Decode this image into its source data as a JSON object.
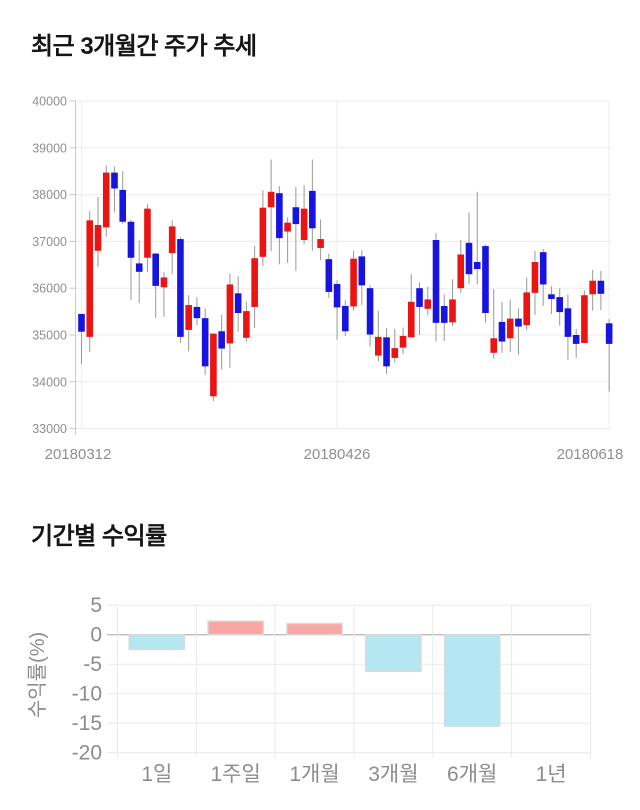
{
  "page": {
    "background": "#ffffff"
  },
  "sections": {
    "price_trend_title": "최근 3개월간 주가 추세",
    "period_return_title": "기간별 수익률"
  },
  "chart_data": [
    {
      "type": "candlestick",
      "title": "최근 3개월간 주가 추세",
      "x_ticks": [
        "20180312",
        "20180426",
        "20180618"
      ],
      "x_tick_data_indices": [
        0,
        31,
        64
      ],
      "y_ticks": [
        40000,
        39000,
        38000,
        37000,
        36000,
        35000,
        34000,
        33000
      ],
      "ylim": [
        33000,
        40000
      ],
      "grid": true,
      "up_color": "#ea1410",
      "down_color": "#1714e0",
      "wick_color": "#999999",
      "ohlc_note": "each row is [open, high, low, close]; close>=open renders red (up), else blue (down)",
      "ohlc": [
        [
          35450,
          35450,
          34380,
          35070
        ],
        [
          34960,
          37650,
          34640,
          37450
        ],
        [
          36800,
          37950,
          36450,
          37350
        ],
        [
          37300,
          38620,
          37100,
          38470
        ],
        [
          38470,
          38600,
          37620,
          38130
        ],
        [
          38100,
          38500,
          37380,
          37420
        ],
        [
          37420,
          37460,
          35750,
          36650
        ],
        [
          36530,
          37020,
          35680,
          36350
        ],
        [
          36650,
          37800,
          36340,
          37700
        ],
        [
          36740,
          36750,
          35360,
          36050
        ],
        [
          36020,
          36350,
          35390,
          36230
        ],
        [
          36750,
          37450,
          36300,
          37320
        ],
        [
          37050,
          37100,
          34830,
          34960
        ],
        [
          35110,
          35850,
          34650,
          35640
        ],
        [
          35600,
          35810,
          35210,
          35360
        ],
        [
          35360,
          35570,
          34150,
          34330
        ],
        [
          33690,
          35030,
          33590,
          35030
        ],
        [
          35080,
          35430,
          34260,
          34710
        ],
        [
          34820,
          36310,
          34300,
          36080
        ],
        [
          35890,
          36250,
          35070,
          35470
        ],
        [
          34940,
          35710,
          34860,
          35510
        ],
        [
          35600,
          36900,
          35150,
          36640
        ],
        [
          36670,
          38090,
          36470,
          37720
        ],
        [
          37730,
          38750,
          36790,
          38060
        ],
        [
          38030,
          38180,
          36510,
          37070
        ],
        [
          37210,
          37510,
          36540,
          37400
        ],
        [
          37730,
          38160,
          36370,
          37370
        ],
        [
          37030,
          38200,
          36940,
          37700
        ],
        [
          38080,
          38750,
          36800,
          37280
        ],
        [
          36860,
          37470,
          36600,
          37050
        ],
        [
          36620,
          36740,
          35790,
          35920
        ],
        [
          36090,
          36170,
          34900,
          35590
        ],
        [
          35620,
          35740,
          34980,
          35080
        ],
        [
          35610,
          36800,
          35520,
          36630
        ],
        [
          36680,
          36810,
          35640,
          36060
        ],
        [
          36000,
          36070,
          34750,
          35010
        ],
        [
          34560,
          35520,
          34440,
          34960
        ],
        [
          34950,
          35150,
          34160,
          34330
        ],
        [
          34510,
          35130,
          34410,
          34720
        ],
        [
          34730,
          35160,
          34600,
          34980
        ],
        [
          34950,
          36300,
          34950,
          35710
        ],
        [
          36000,
          36130,
          35000,
          35600
        ],
        [
          35560,
          36030,
          35420,
          35760
        ],
        [
          37030,
          37180,
          34860,
          35260
        ],
        [
          35620,
          35870,
          34870,
          35260
        ],
        [
          35270,
          36190,
          35190,
          35760
        ],
        [
          36000,
          37030,
          35900,
          36720
        ],
        [
          36970,
          37620,
          36090,
          36300
        ],
        [
          36560,
          38060,
          36080,
          36410
        ],
        [
          36900,
          36930,
          35260,
          35470
        ],
        [
          34620,
          35980,
          34500,
          34930
        ],
        [
          35280,
          35700,
          34620,
          34860
        ],
        [
          34930,
          35760,
          34640,
          35350
        ],
        [
          35350,
          35570,
          34580,
          35180
        ],
        [
          35210,
          36230,
          35100,
          35910
        ],
        [
          35900,
          36800,
          35430,
          36560
        ],
        [
          36770,
          36840,
          35620,
          36080
        ],
        [
          35870,
          36040,
          35450,
          35770
        ],
        [
          35810,
          36000,
          35200,
          35490
        ],
        [
          35570,
          35870,
          34470,
          34960
        ],
        [
          35000,
          35130,
          34510,
          34810
        ],
        [
          34830,
          35950,
          34830,
          35850
        ],
        [
          35870,
          36390,
          35520,
          36160
        ],
        [
          36160,
          36370,
          35530,
          35880
        ],
        [
          35250,
          35340,
          33790,
          34810
        ]
      ]
    },
    {
      "type": "bar",
      "title": "기간별 수익률",
      "categories": [
        "1일",
        "1주일",
        "1개월",
        "3개월",
        "6개월",
        "1년"
      ],
      "values": [
        -2.5,
        2.3,
        1.9,
        -6.2,
        -15.5,
        0
      ],
      "ylabel": "수익률(%)",
      "xlabel": "",
      "y_ticks": [
        5,
        0,
        -5,
        -10,
        -15,
        -20
      ],
      "ylim": [
        -20,
        5
      ],
      "grid": true,
      "legend": "none",
      "positive_color": "#f9a6a4",
      "negative_color": "#b5e7f2",
      "bar_border_color": "#d9d9d9",
      "zero_line_color": "#a3a3a3"
    }
  ]
}
